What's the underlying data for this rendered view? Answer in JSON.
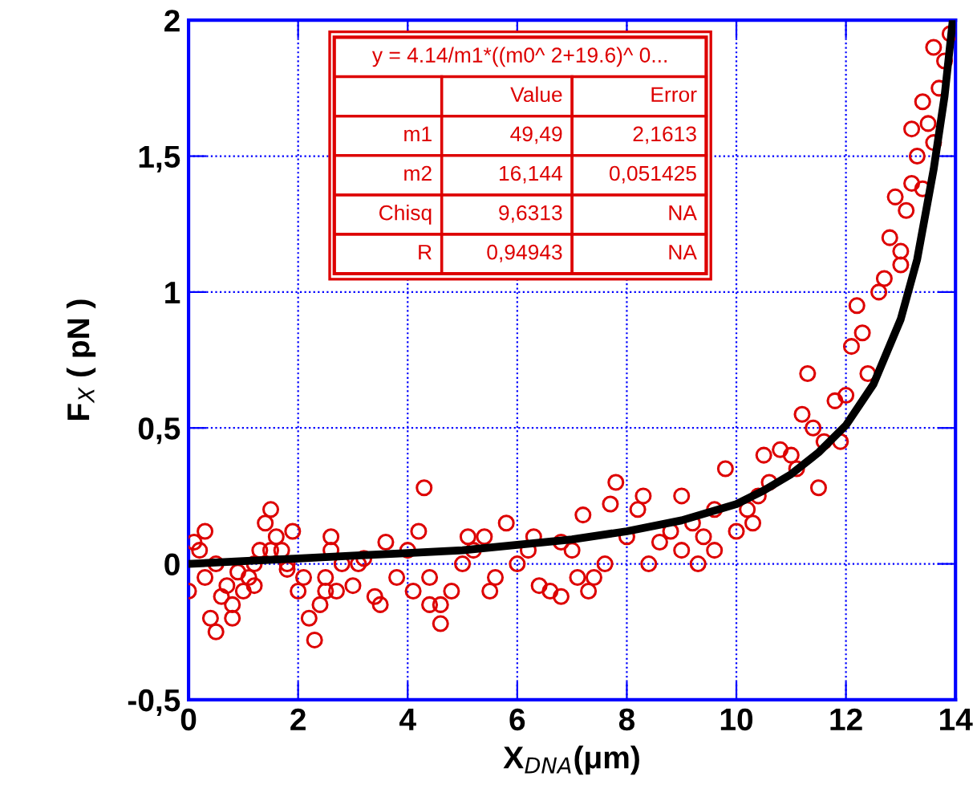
{
  "chart_data": {
    "type": "scatter",
    "xlabel": "X$_{DNA}$(μm)",
    "ylabel": "F$_{X}$ ( pN )",
    "xlim": [
      0,
      14
    ],
    "ylim": [
      -0.5,
      2
    ],
    "xticks": [
      0,
      2,
      4,
      6,
      8,
      10,
      12,
      14
    ],
    "yticks": [
      {
        "value": -0.5,
        "label": "-0,5"
      },
      0,
      {
        "value": 0.5,
        "label": "0,5"
      },
      1,
      {
        "value": 1.5,
        "label": "1,5"
      },
      2
    ],
    "grid": true,
    "series": [
      {
        "marker": "circle",
        "color": "#dd0000",
        "x": [
          0.0,
          0.1,
          0.2,
          0.3,
          0.4,
          0.5,
          0.6,
          0.7,
          0.8,
          0.9,
          1.0,
          1.1,
          1.2,
          1.3,
          1.4,
          1.5,
          1.6,
          1.7,
          1.8,
          1.9,
          2.0,
          2.1,
          2.2,
          2.3,
          2.4,
          2.5,
          2.6,
          2.7,
          2.8,
          3.0,
          3.2,
          3.4,
          3.6,
          3.8,
          4.0,
          4.2,
          4.3,
          4.4,
          4.6,
          4.8,
          5.0,
          5.2,
          5.4,
          5.6,
          5.8,
          6.0,
          6.2,
          6.4,
          6.6,
          6.8,
          7.0,
          7.2,
          7.4,
          7.6,
          7.8,
          8.0,
          8.2,
          8.4,
          8.6,
          8.8,
          9.0,
          9.2,
          9.4,
          9.6,
          9.8,
          10.0,
          10.2,
          10.4,
          10.6,
          10.8,
          11.0,
          11.2,
          11.3,
          11.4,
          11.6,
          11.8,
          12.0,
          12.1,
          12.2,
          12.4,
          12.6,
          12.8,
          13.0,
          13.1,
          13.2,
          13.3,
          13.4,
          13.5,
          13.6,
          13.7,
          13.8,
          13.9,
          0.3,
          0.8,
          1.5,
          2.6,
          3.5,
          4.4,
          5.5,
          6.3,
          7.3,
          8.3,
          9.3,
          10.3,
          11.1,
          12.3,
          12.7,
          13.2,
          13.6,
          0.5,
          1.2,
          2.5,
          3.1,
          4.1,
          5.1,
          6.8,
          7.7,
          9.0,
          10.5,
          11.5,
          12.9,
          13.4,
          1.8,
          4.6,
          7.1,
          9.6,
          11.9,
          13.0
        ],
        "values": [
          -0.1,
          0.08,
          0.05,
          -0.05,
          -0.2,
          -0.25,
          -0.12,
          -0.08,
          -0.15,
          -0.03,
          -0.1,
          -0.05,
          0.0,
          0.05,
          0.15,
          0.2,
          0.1,
          0.05,
          -0.02,
          0.12,
          -0.1,
          -0.05,
          -0.2,
          -0.28,
          -0.15,
          -0.05,
          0.05,
          -0.1,
          0.0,
          -0.08,
          0.02,
          -0.12,
          0.08,
          -0.05,
          0.05,
          0.12,
          0.28,
          -0.15,
          -0.22,
          -0.1,
          0.0,
          0.05,
          0.1,
          -0.05,
          0.15,
          0.0,
          0.05,
          -0.08,
          -0.1,
          0.08,
          0.05,
          0.18,
          -0.05,
          0.0,
          0.3,
          0.1,
          0.2,
          0.0,
          0.08,
          0.12,
          0.05,
          0.15,
          0.1,
          0.2,
          0.35,
          0.12,
          0.2,
          0.25,
          0.3,
          0.42,
          0.4,
          0.55,
          0.7,
          0.5,
          0.45,
          0.6,
          0.62,
          0.8,
          0.95,
          0.7,
          1.0,
          1.2,
          1.15,
          1.3,
          1.4,
          1.5,
          1.38,
          1.62,
          1.55,
          1.75,
          1.85,
          1.95,
          0.12,
          -0.2,
          0.05,
          0.1,
          -0.15,
          -0.05,
          -0.1,
          0.1,
          -0.1,
          0.25,
          0.0,
          0.15,
          0.35,
          0.85,
          1.05,
          1.6,
          1.9,
          0.0,
          -0.08,
          -0.1,
          0.0,
          -0.1,
          0.1,
          -0.12,
          0.22,
          0.25,
          0.4,
          0.28,
          1.35,
          1.7,
          0.0,
          -0.15,
          -0.05,
          0.05,
          0.45,
          1.1
        ]
      },
      {
        "type": "line",
        "color": "#000000",
        "x": [
          0,
          1,
          2,
          3,
          4,
          5,
          6,
          7,
          8,
          9,
          10,
          10.5,
          11,
          11.5,
          12,
          12.5,
          13,
          13.3,
          13.6,
          13.8,
          13.95
        ],
        "values": [
          0.0,
          0.01,
          0.02,
          0.03,
          0.04,
          0.05,
          0.07,
          0.09,
          0.12,
          0.16,
          0.22,
          0.27,
          0.33,
          0.41,
          0.51,
          0.66,
          0.9,
          1.12,
          1.45,
          1.72,
          2.0
        ]
      }
    ],
    "annotations": [
      "y = 4.14/m1*((m0^ 2+19.6)^ 0...",
      "Value",
      "Error",
      "m1",
      "49,49",
      "2,1613",
      "m2",
      "16,144",
      "0,051425",
      "Chisq",
      "9,6313",
      "NA",
      "R",
      "0,94943",
      "NA"
    ]
  }
}
